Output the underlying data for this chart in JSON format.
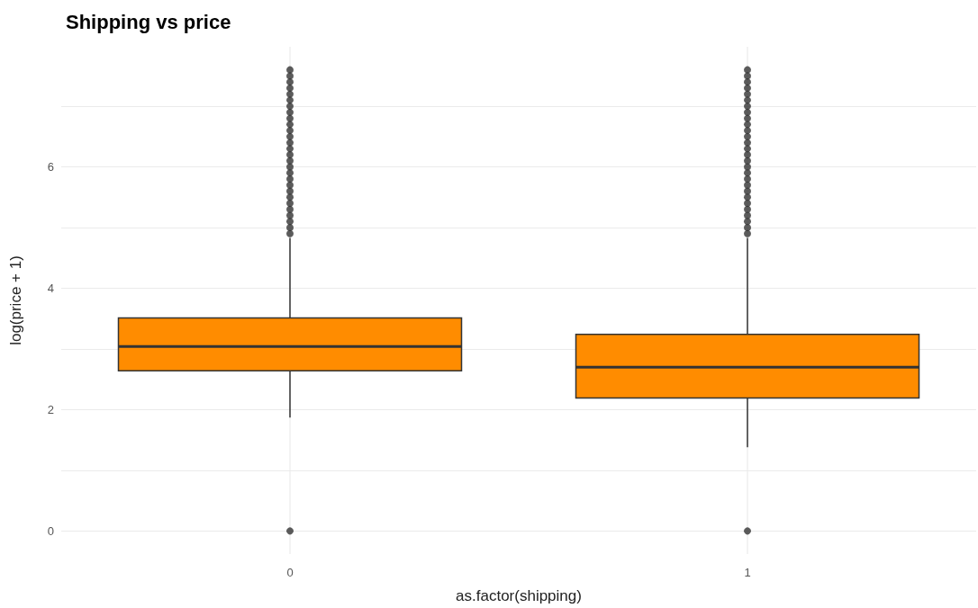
{
  "chart_data": {
    "type": "box",
    "title": "Shipping vs price",
    "xlabel": "as.factor(shipping)",
    "ylabel": "log(price + 1)",
    "categories": [
      "0",
      "1"
    ],
    "boxes": [
      {
        "low": 1.87,
        "q1": 2.64,
        "median": 3.04,
        "q3": 3.51,
        "high": 4.83,
        "outliers": [
          0,
          4.9,
          5.0,
          5.1,
          5.2,
          5.3,
          5.4,
          5.5,
          5.6,
          5.7,
          5.8,
          5.9,
          6.0,
          6.1,
          6.2,
          6.3,
          6.4,
          6.5,
          6.6,
          6.7,
          6.8,
          6.9,
          7.0,
          7.1,
          7.2,
          7.3,
          7.4,
          7.5,
          7.6
        ]
      },
      {
        "low": 1.38,
        "q1": 2.19,
        "median": 2.7,
        "q3": 3.24,
        "high": 4.83,
        "outliers": [
          0,
          4.9,
          5.0,
          5.1,
          5.2,
          5.3,
          5.4,
          5.5,
          5.6,
          5.7,
          5.8,
          5.9,
          6.0,
          6.1,
          6.2,
          6.3,
          6.4,
          6.5,
          6.6,
          6.7,
          6.8,
          6.9,
          7.0,
          7.1,
          7.2,
          7.3,
          7.4,
          7.5,
          7.6
        ]
      }
    ],
    "color": "#ff8c00",
    "ylim": [
      -0.38,
      7.98
    ],
    "yticks": [
      0,
      {
        "value": 1,
        "label": null
      },
      2,
      {
        "value": 3,
        "label": null
      },
      4,
      {
        "value": 5,
        "label": null
      },
      6,
      {
        "value": 7,
        "label": null
      }
    ],
    "grid": true
  }
}
